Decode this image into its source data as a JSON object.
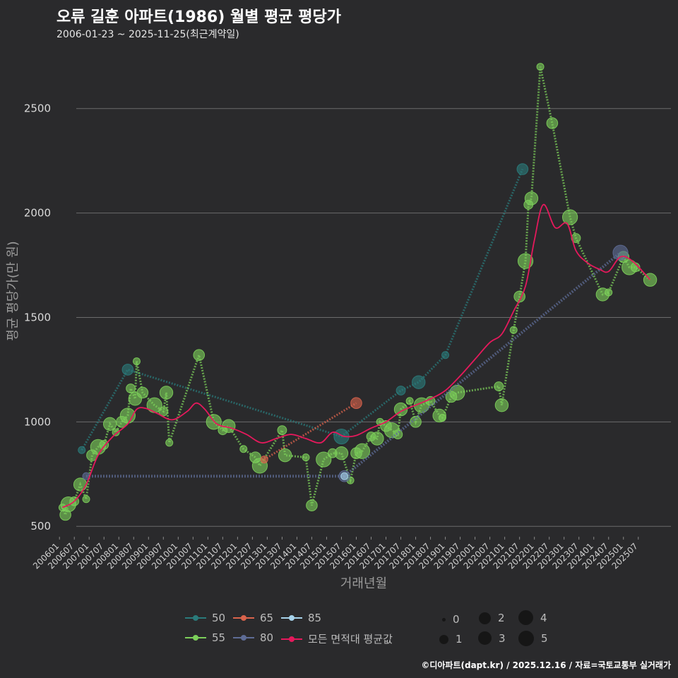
{
  "header": {
    "title": "오류 길훈 아파트(1986) 월별 평균 평당가",
    "subtitle": "2006-01-23 ~ 2025-11-25(최근계약일)"
  },
  "footer": "©디아파트(dapt.kr) / 2025.12.16 / 자료=국토교통부 실거래가",
  "legend": {
    "series": [
      {
        "label": "50",
        "color": "#2a7b7b"
      },
      {
        "label": "55",
        "color": "#7ccf5a"
      },
      {
        "label": "65",
        "color": "#d9634c"
      },
      {
        "label": "80",
        "color": "#5e6c96"
      },
      {
        "label": "85",
        "color": "#a6d2ea"
      },
      {
        "label": "모든 면적대 평균값",
        "color": "#e5195c"
      }
    ],
    "sizes": [
      "0",
      "1",
      "2",
      "3",
      "4",
      "5"
    ]
  },
  "chart_data": {
    "type": "line",
    "title": "오류 길훈 아파트(1986) 월별 평균 평당가",
    "xlabel": "거래년월",
    "ylabel": "평균 평당가(만 원)",
    "ylim": [
      450,
      2800
    ],
    "yticks": [
      500,
      1000,
      1500,
      2000,
      2500
    ],
    "xlim": [
      2005.9,
      2026.6
    ],
    "xticks": [
      "200601",
      "200607",
      "200701",
      "200707",
      "200801",
      "200807",
      "200901",
      "200907",
      "201001",
      "201007",
      "201101",
      "201107",
      "201201",
      "201207",
      "201301",
      "201307",
      "201401",
      "201407",
      "201501",
      "201507",
      "201601",
      "201607",
      "201701",
      "201707",
      "201801",
      "201807",
      "201901",
      "201907",
      "202001",
      "202007",
      "202101",
      "202107",
      "202201",
      "202207",
      "202301",
      "202307",
      "202401",
      "202407",
      "202501",
      "202507"
    ],
    "series": [
      {
        "name": "50",
        "color": "#2a7b7b",
        "points": [
          [
            2006.75,
            865
          ],
          [
            2008.3,
            1250
          ],
          [
            2015.5,
            930
          ],
          [
            2017.5,
            1150
          ],
          [
            2018.1,
            1190
          ],
          [
            2019.0,
            1320
          ],
          [
            2021.6,
            2210
          ]
        ]
      },
      {
        "name": "55",
        "color": "#7ccf5a",
        "points": [
          [
            2006.1,
            590
          ],
          [
            2006.2,
            555
          ],
          [
            2006.3,
            605
          ],
          [
            2006.5,
            620
          ],
          [
            2006.7,
            700
          ],
          [
            2006.9,
            630
          ],
          [
            2007.1,
            840
          ],
          [
            2007.3,
            880
          ],
          [
            2007.5,
            890
          ],
          [
            2007.7,
            990
          ],
          [
            2007.9,
            950
          ],
          [
            2008.1,
            1000
          ],
          [
            2008.3,
            1030
          ],
          [
            2008.4,
            1160
          ],
          [
            2008.55,
            1110
          ],
          [
            2008.6,
            1290
          ],
          [
            2008.8,
            1140
          ],
          [
            2009.2,
            1080
          ],
          [
            2009.5,
            1050
          ],
          [
            2009.6,
            1140
          ],
          [
            2009.7,
            900
          ],
          [
            2010.7,
            1320
          ],
          [
            2011.2,
            1000
          ],
          [
            2011.5,
            960
          ],
          [
            2011.7,
            980
          ],
          [
            2012.2,
            870
          ],
          [
            2012.6,
            830
          ],
          [
            2012.75,
            790
          ],
          [
            2013.5,
            960
          ],
          [
            2013.6,
            840
          ],
          [
            2014.3,
            830
          ],
          [
            2014.5,
            600
          ],
          [
            2014.9,
            820
          ],
          [
            2015.2,
            850
          ],
          [
            2015.5,
            850
          ],
          [
            2015.8,
            720
          ],
          [
            2016.0,
            850
          ],
          [
            2016.2,
            860
          ],
          [
            2016.5,
            930
          ],
          [
            2016.7,
            920
          ],
          [
            2016.8,
            1000
          ],
          [
            2017.0,
            980
          ],
          [
            2017.2,
            960
          ],
          [
            2017.4,
            940
          ],
          [
            2017.5,
            1060
          ],
          [
            2017.8,
            1100
          ],
          [
            2018.0,
            1000
          ],
          [
            2018.2,
            1080
          ],
          [
            2018.5,
            1100
          ],
          [
            2018.8,
            1030
          ],
          [
            2018.9,
            1020
          ],
          [
            2019.2,
            1120
          ],
          [
            2019.4,
            1140
          ],
          [
            2020.8,
            1170
          ],
          [
            2020.9,
            1080
          ],
          [
            2021.3,
            1440
          ],
          [
            2021.5,
            1600
          ],
          [
            2021.7,
            1770
          ],
          [
            2021.8,
            2040
          ],
          [
            2021.9,
            2070
          ],
          [
            2022.2,
            2700
          ],
          [
            2022.6,
            2430
          ],
          [
            2023.2,
            1980
          ],
          [
            2023.4,
            1880
          ],
          [
            2024.3,
            1610
          ],
          [
            2024.5,
            1620
          ],
          [
            2025.0,
            1790
          ],
          [
            2025.2,
            1740
          ],
          [
            2025.4,
            1740
          ],
          [
            2025.9,
            1680
          ]
        ]
      },
      {
        "name": "65",
        "color": "#d9634c",
        "points": [
          [
            2012.9,
            820
          ],
          [
            2016.0,
            1090
          ]
        ]
      },
      {
        "name": "80",
        "color": "#5e6c96",
        "points": [
          [
            2006.9,
            740
          ],
          [
            2015.6,
            740
          ],
          [
            2024.9,
            1810
          ]
        ]
      },
      {
        "name": "85",
        "color": "#a6d2ea",
        "points": [
          [
            2015.6,
            740
          ]
        ]
      },
      {
        "name": "모든 면적대 평균값",
        "color": "#e5195c",
        "points": [
          [
            2006.1,
            590
          ],
          [
            2006.5,
            620
          ],
          [
            2006.9,
            700
          ],
          [
            2007.3,
            840
          ],
          [
            2007.8,
            930
          ],
          [
            2008.3,
            990
          ],
          [
            2008.6,
            1060
          ],
          [
            2008.9,
            1065
          ],
          [
            2009.3,
            1040
          ],
          [
            2009.8,
            1010
          ],
          [
            2010.3,
            1050
          ],
          [
            2010.6,
            1090
          ],
          [
            2010.9,
            1060
          ],
          [
            2011.3,
            990
          ],
          [
            2011.8,
            970
          ],
          [
            2012.3,
            940
          ],
          [
            2012.8,
            900
          ],
          [
            2013.3,
            920
          ],
          [
            2013.8,
            940
          ],
          [
            2014.3,
            920
          ],
          [
            2014.8,
            900
          ],
          [
            2015.2,
            950
          ],
          [
            2015.6,
            930
          ],
          [
            2016.0,
            935
          ],
          [
            2016.5,
            970
          ],
          [
            2017.0,
            1000
          ],
          [
            2017.5,
            1050
          ],
          [
            2018.0,
            1080
          ],
          [
            2018.5,
            1110
          ],
          [
            2019.0,
            1150
          ],
          [
            2019.5,
            1220
          ],
          [
            2020.0,
            1300
          ],
          [
            2020.5,
            1380
          ],
          [
            2020.9,
            1420
          ],
          [
            2021.3,
            1530
          ],
          [
            2021.7,
            1650
          ],
          [
            2022.0,
            1870
          ],
          [
            2022.3,
            2040
          ],
          [
            2022.7,
            1930
          ],
          [
            2023.1,
            1950
          ],
          [
            2023.4,
            1820
          ],
          [
            2023.8,
            1760
          ],
          [
            2024.2,
            1730
          ],
          [
            2024.5,
            1720
          ],
          [
            2024.9,
            1790
          ],
          [
            2025.3,
            1770
          ],
          [
            2025.9,
            1680
          ]
        ]
      }
    ]
  }
}
